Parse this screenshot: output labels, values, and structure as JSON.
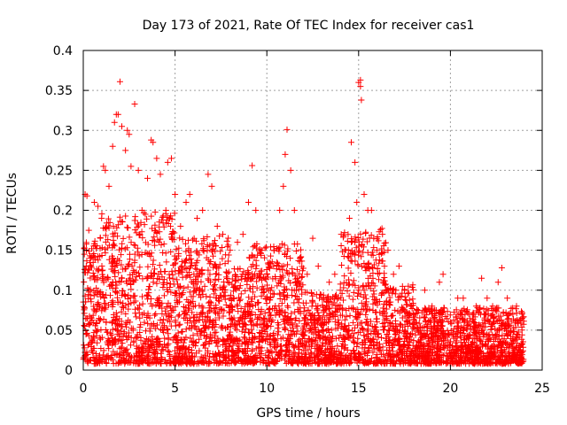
{
  "chart_data": {
    "type": "scatter",
    "title": "Day 173 of 2021, Rate Of TEC Index for receiver cas1",
    "xlabel": "GPS time / hours",
    "ylabel": "ROTI / TECUs",
    "xlim": [
      0,
      25
    ],
    "ylim": [
      0,
      0.4
    ],
    "x_ticks": [
      0,
      5,
      10,
      15,
      20,
      25
    ],
    "x_tick_labels": [
      "0",
      "5",
      "10",
      "15",
      "20",
      "25"
    ],
    "y_ticks": [
      0,
      0.05,
      0.1,
      0.15,
      0.2,
      0.25,
      0.3,
      0.35,
      0.4
    ],
    "y_tick_labels": [
      "0",
      "0.05",
      "0.1",
      "0.15",
      "0.2",
      "0.25",
      "0.3",
      "0.35",
      "0.4"
    ],
    "grid": true,
    "marker": "+",
    "color": "#ff0000",
    "series": [
      {
        "name": "ROTI",
        "points": [
          [
            0.1,
            0.22
          ],
          [
            0.2,
            0.218
          ],
          [
            0.3,
            0.175
          ],
          [
            0.4,
            0.14
          ],
          [
            0.6,
            0.21
          ],
          [
            0.8,
            0.205
          ],
          [
            1.0,
            0.19
          ],
          [
            1.1,
            0.255
          ],
          [
            1.2,
            0.25
          ],
          [
            1.4,
            0.23
          ],
          [
            1.6,
            0.28
          ],
          [
            1.7,
            0.31
          ],
          [
            1.8,
            0.32
          ],
          [
            1.9,
            0.32
          ],
          [
            2.0,
            0.361
          ],
          [
            2.1,
            0.305
          ],
          [
            2.3,
            0.275
          ],
          [
            2.4,
            0.3
          ],
          [
            2.5,
            0.295
          ],
          [
            2.6,
            0.255
          ],
          [
            2.8,
            0.333
          ],
          [
            3.0,
            0.25
          ],
          [
            3.2,
            0.2
          ],
          [
            3.5,
            0.24
          ],
          [
            3.7,
            0.288
          ],
          [
            3.8,
            0.285
          ],
          [
            4.0,
            0.265
          ],
          [
            4.2,
            0.245
          ],
          [
            4.5,
            0.2
          ],
          [
            4.6,
            0.26
          ],
          [
            4.8,
            0.265
          ],
          [
            5.0,
            0.22
          ],
          [
            5.3,
            0.18
          ],
          [
            5.6,
            0.21
          ],
          [
            5.8,
            0.22
          ],
          [
            6.2,
            0.19
          ],
          [
            6.5,
            0.2
          ],
          [
            6.8,
            0.245
          ],
          [
            7.0,
            0.23
          ],
          [
            7.3,
            0.18
          ],
          [
            7.6,
            0.17
          ],
          [
            8.0,
            0.15
          ],
          [
            8.4,
            0.16
          ],
          [
            8.7,
            0.17
          ],
          [
            9.0,
            0.21
          ],
          [
            9.2,
            0.256
          ],
          [
            9.4,
            0.2
          ],
          [
            9.7,
            0.15
          ],
          [
            10.0,
            0.12
          ],
          [
            10.4,
            0.15
          ],
          [
            10.7,
            0.2
          ],
          [
            10.9,
            0.23
          ],
          [
            11.0,
            0.27
          ],
          [
            11.1,
            0.301
          ],
          [
            11.3,
            0.25
          ],
          [
            11.5,
            0.2
          ],
          [
            11.8,
            0.14
          ],
          [
            12.2,
            0.12
          ],
          [
            12.5,
            0.165
          ],
          [
            12.8,
            0.13
          ],
          [
            13.1,
            0.09
          ],
          [
            13.4,
            0.11
          ],
          [
            13.7,
            0.12
          ],
          [
            14.0,
            0.1
          ],
          [
            14.3,
            0.15
          ],
          [
            14.5,
            0.19
          ],
          [
            14.6,
            0.285
          ],
          [
            14.8,
            0.26
          ],
          [
            14.9,
            0.21
          ],
          [
            15.0,
            0.36
          ],
          [
            15.1,
            0.363
          ],
          [
            15.1,
            0.355
          ],
          [
            15.15,
            0.338
          ],
          [
            15.3,
            0.22
          ],
          [
            15.5,
            0.2
          ],
          [
            15.7,
            0.2
          ],
          [
            16.0,
            0.15
          ],
          [
            16.3,
            0.17
          ],
          [
            16.6,
            0.15
          ],
          [
            16.9,
            0.12
          ],
          [
            17.2,
            0.13
          ],
          [
            17.5,
            0.1
          ],
          [
            17.8,
            0.07
          ],
          [
            18.2,
            0.075
          ],
          [
            18.6,
            0.1
          ],
          [
            19.0,
            0.08
          ],
          [
            19.4,
            0.11
          ],
          [
            19.6,
            0.12
          ],
          [
            20.0,
            0.06
          ],
          [
            20.4,
            0.09
          ],
          [
            20.7,
            0.09
          ],
          [
            21.0,
            0.07
          ],
          [
            21.4,
            0.08
          ],
          [
            21.7,
            0.115
          ],
          [
            22.0,
            0.09
          ],
          [
            22.3,
            0.08
          ],
          [
            22.6,
            0.11
          ],
          [
            22.8,
            0.128
          ],
          [
            23.1,
            0.09
          ],
          [
            23.4,
            0.07
          ],
          [
            23.6,
            0.08
          ],
          [
            23.9,
            0.07
          ]
        ]
      }
    ]
  }
}
